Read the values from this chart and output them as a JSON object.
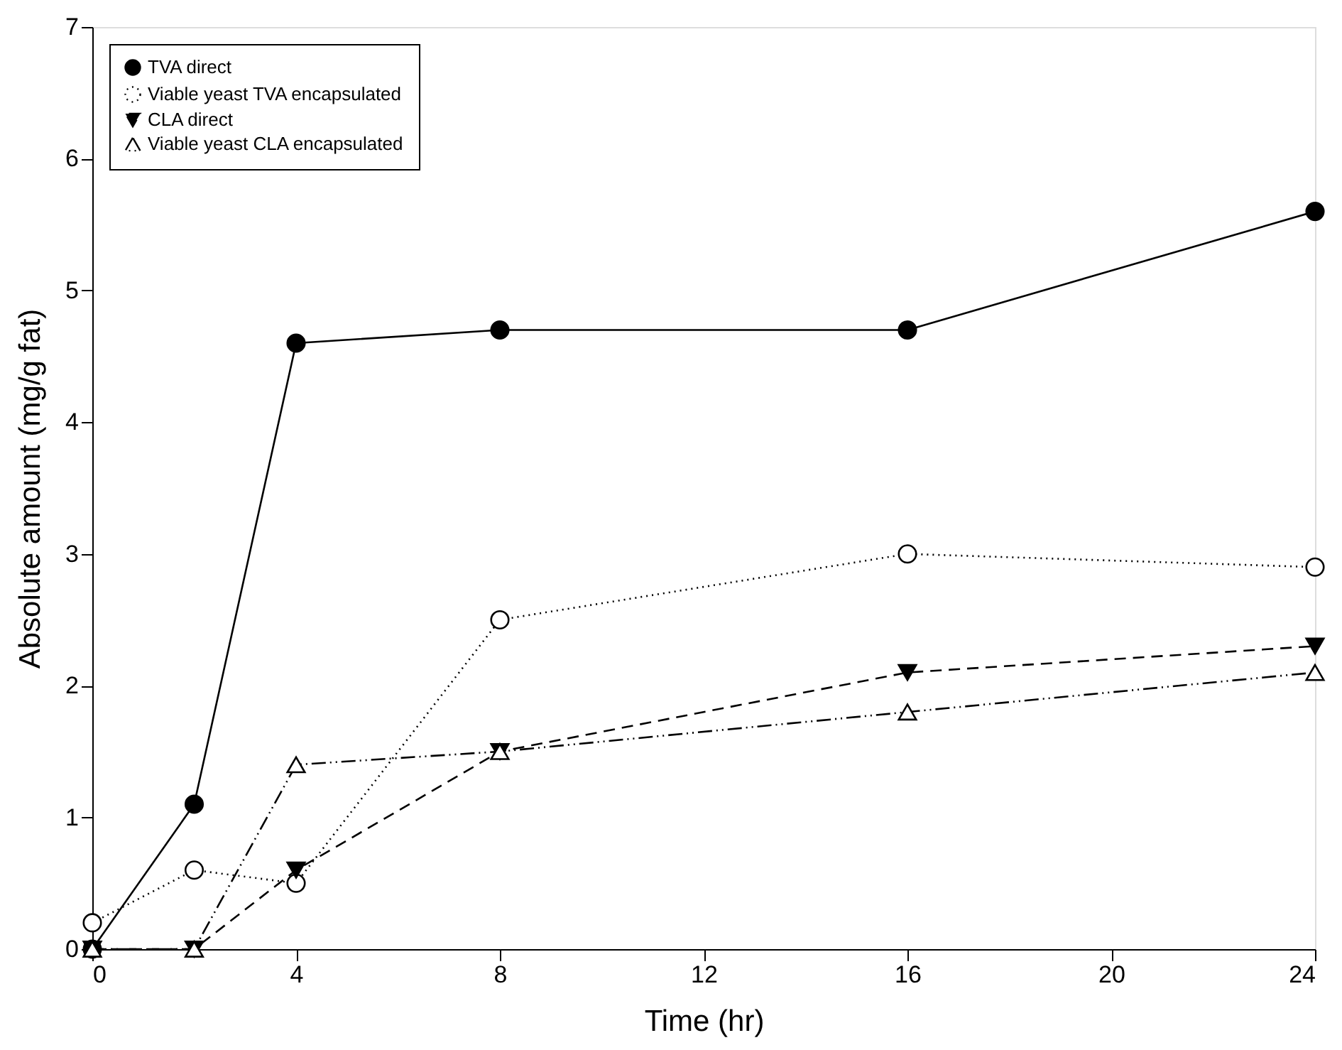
{
  "chart_data": {
    "type": "line",
    "xlabel": "Time (hr)",
    "ylabel": "Absolute amount (mg/g fat)",
    "x": [
      0,
      2,
      4,
      8,
      16,
      24
    ],
    "series": [
      {
        "name": "TVA direct",
        "color": "#000000",
        "marker": "circle",
        "line_style": "solid",
        "values": [
          0,
          1.1,
          4.6,
          4.7,
          4.7,
          5.6
        ]
      },
      {
        "name": "Viable yeast TVA encapsulated",
        "color": "#000000",
        "marker": "circle-open",
        "line_style": "dotted",
        "values": [
          0.2,
          0.6,
          0.5,
          2.5,
          3.0,
          2.9
        ]
      },
      {
        "name": "CLA direct",
        "color": "#000000",
        "marker": "triangle-down",
        "line_style": "dashed",
        "values": [
          0,
          0,
          0.6,
          1.5,
          2.1,
          2.3
        ]
      },
      {
        "name": "Viable yeast CLA encapsulated",
        "color": "#000000",
        "marker": "triangle-open",
        "line_style": "dashdot",
        "values": [
          0,
          0,
          1.4,
          1.5,
          1.8,
          2.1
        ]
      }
    ],
    "xlim": [
      0,
      24
    ],
    "ylim": [
      0,
      7
    ],
    "xticks": [
      0,
      4,
      8,
      12,
      16,
      20,
      24
    ],
    "yticks": [
      0,
      1,
      2,
      3,
      4,
      5,
      6,
      7
    ],
    "grid": false,
    "legend": "top left"
  }
}
